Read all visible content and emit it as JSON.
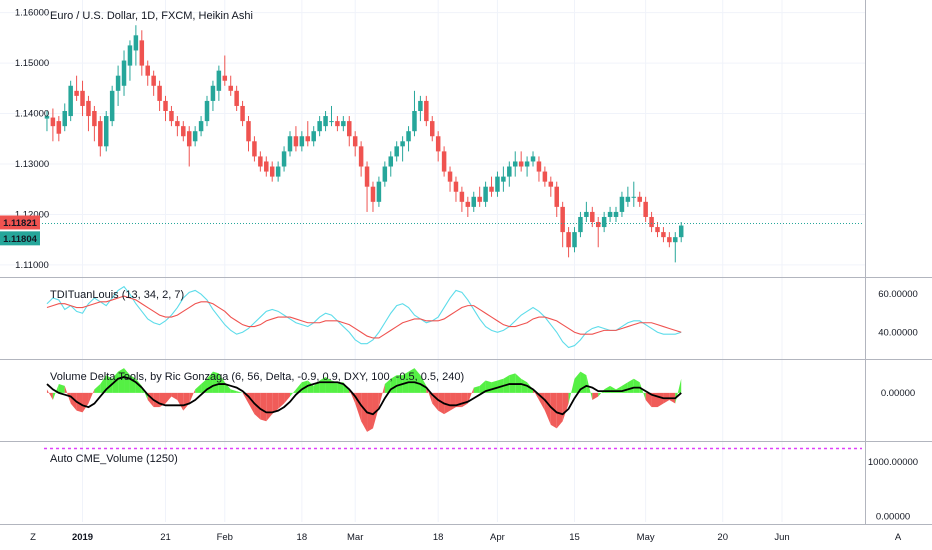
{
  "chart_data": {
    "type": "candlestick",
    "main": {
      "title": "Euro / U.S. Dollar, 1D, FXCM, Heikin Ashi",
      "y_ticks": [
        "1.16000",
        "1.15000",
        "1.14000",
        "1.13000",
        "1.12000",
        "1.11000"
      ],
      "y_tick_values": [
        1.16,
        1.15,
        1.14,
        1.13,
        1.12,
        1.11
      ],
      "ylim": [
        1.108,
        1.1625
      ],
      "price_labels": [
        {
          "text": "1.11821",
          "value": 1.11821,
          "color": "#ef5350"
        },
        {
          "text": "1.11804",
          "value": 1.11804,
          "color": "#26a69a"
        }
      ],
      "candles": [
        [
          1.139,
          1.1405,
          1.1365,
          1.1395
        ],
        [
          1.1392,
          1.141,
          1.1345,
          1.1375
        ],
        [
          1.1385,
          1.1395,
          1.1345,
          1.136
        ],
        [
          1.1375,
          1.142,
          1.1365,
          1.1405
        ],
        [
          1.1395,
          1.1465,
          1.1385,
          1.1455
        ],
        [
          1.1445,
          1.1475,
          1.1425,
          1.1435
        ],
        [
          1.1445,
          1.1465,
          1.1395,
          1.1415
        ],
        [
          1.1425,
          1.1435,
          1.1365,
          1.1395
        ],
        [
          1.1405,
          1.1415,
          1.1345,
          1.1375
        ],
        [
          1.1385,
          1.1395,
          1.1315,
          1.1335
        ],
        [
          1.1335,
          1.1405,
          1.1325,
          1.1395
        ],
        [
          1.1385,
          1.1455,
          1.1375,
          1.1445
        ],
        [
          1.1445,
          1.1495,
          1.1415,
          1.1475
        ],
        [
          1.1455,
          1.1525,
          1.1435,
          1.1505
        ],
        [
          1.1495,
          1.1545,
          1.1465,
          1.1535
        ],
        [
          1.1525,
          1.1575,
          1.1495,
          1.1555
        ],
        [
          1.1545,
          1.1565,
          1.1475,
          1.1495
        ],
        [
          1.1495,
          1.1505,
          1.1455,
          1.1475
        ],
        [
          1.1475,
          1.1485,
          1.1435,
          1.1455
        ],
        [
          1.1455,
          1.1465,
          1.1405,
          1.1425
        ],
        [
          1.1425,
          1.1435,
          1.1385,
          1.1405
        ],
        [
          1.1405,
          1.1415,
          1.1375,
          1.1385
        ],
        [
          1.1385,
          1.1395,
          1.1355,
          1.1375
        ],
        [
          1.1375,
          1.1385,
          1.1345,
          1.1355
        ],
        [
          1.1365,
          1.1375,
          1.1295,
          1.1335
        ],
        [
          1.1345,
          1.1375,
          1.1335,
          1.1365
        ],
        [
          1.1365,
          1.1395,
          1.1355,
          1.1385
        ],
        [
          1.1385,
          1.1435,
          1.1375,
          1.1425
        ],
        [
          1.1425,
          1.1465,
          1.1405,
          1.1455
        ],
        [
          1.1445,
          1.1495,
          1.1425,
          1.1485
        ],
        [
          1.1475,
          1.1515,
          1.1455,
          1.1465
        ],
        [
          1.1455,
          1.1475,
          1.1435,
          1.1445
        ],
        [
          1.1445,
          1.1455,
          1.1405,
          1.1415
        ],
        [
          1.1415,
          1.1425,
          1.1375,
          1.1385
        ],
        [
          1.1385,
          1.1395,
          1.1325,
          1.1345
        ],
        [
          1.1345,
          1.1355,
          1.1305,
          1.1315
        ],
        [
          1.1315,
          1.1325,
          1.1285,
          1.1295
        ],
        [
          1.1305,
          1.1315,
          1.1275,
          1.1285
        ],
        [
          1.1295,
          1.1305,
          1.1265,
          1.1275
        ],
        [
          1.1275,
          1.1305,
          1.1265,
          1.1295
        ],
        [
          1.1295,
          1.1335,
          1.1285,
          1.1325
        ],
        [
          1.1325,
          1.1365,
          1.1315,
          1.1355
        ],
        [
          1.1355,
          1.1375,
          1.1325,
          1.1335
        ],
        [
          1.1335,
          1.1365,
          1.1325,
          1.1355
        ],
        [
          1.1355,
          1.1385,
          1.1335,
          1.1345
        ],
        [
          1.1345,
          1.1375,
          1.1335,
          1.1365
        ],
        [
          1.1365,
          1.1395,
          1.1355,
          1.1385
        ],
        [
          1.1375,
          1.1405,
          1.1365,
          1.1395
        ],
        [
          1.1385,
          1.1415,
          1.1375,
          1.1385
        ],
        [
          1.1385,
          1.1395,
          1.1365,
          1.1375
        ],
        [
          1.1375,
          1.1395,
          1.1365,
          1.1385
        ],
        [
          1.1385,
          1.1395,
          1.1335,
          1.1355
        ],
        [
          1.1355,
          1.1365,
          1.1315,
          1.1335
        ],
        [
          1.1335,
          1.1345,
          1.1275,
          1.1295
        ],
        [
          1.1295,
          1.1305,
          1.1205,
          1.1255
        ],
        [
          1.1255,
          1.1265,
          1.1205,
          1.1225
        ],
        [
          1.1225,
          1.1275,
          1.1215,
          1.1265
        ],
        [
          1.1265,
          1.1305,
          1.1255,
          1.1295
        ],
        [
          1.1295,
          1.1325,
          1.1275,
          1.1315
        ],
        [
          1.1315,
          1.1345,
          1.1305,
          1.1335
        ],
        [
          1.1335,
          1.1355,
          1.1305,
          1.1345
        ],
        [
          1.1345,
          1.1375,
          1.1325,
          1.1365
        ],
        [
          1.1365,
          1.1445,
          1.1355,
          1.1405
        ],
        [
          1.1405,
          1.1435,
          1.1385,
          1.1425
        ],
        [
          1.1425,
          1.1435,
          1.1375,
          1.1385
        ],
        [
          1.1385,
          1.1395,
          1.1345,
          1.1355
        ],
        [
          1.1355,
          1.1365,
          1.1305,
          1.1325
        ],
        [
          1.1325,
          1.1335,
          1.1275,
          1.1285
        ],
        [
          1.1285,
          1.1295,
          1.1245,
          1.1265
        ],
        [
          1.1265,
          1.1275,
          1.1225,
          1.1245
        ],
        [
          1.1245,
          1.1255,
          1.1205,
          1.1225
        ],
        [
          1.1225,
          1.1235,
          1.1195,
          1.1215
        ],
        [
          1.1215,
          1.1245,
          1.1205,
          1.1235
        ],
        [
          1.1235,
          1.1255,
          1.1215,
          1.1225
        ],
        [
          1.1225,
          1.1265,
          1.1215,
          1.1255
        ],
        [
          1.1255,
          1.1275,
          1.1235,
          1.1245
        ],
        [
          1.1245,
          1.1285,
          1.1235,
          1.1275
        ],
        [
          1.1265,
          1.1295,
          1.1245,
          1.1275
        ],
        [
          1.1275,
          1.1305,
          1.1255,
          1.1295
        ],
        [
          1.1295,
          1.1325,
          1.1275,
          1.1305
        ],
        [
          1.1305,
          1.1325,
          1.1285,
          1.1295
        ],
        [
          1.1295,
          1.1315,
          1.1275,
          1.1305
        ],
        [
          1.1305,
          1.1325,
          1.1295,
          1.1315
        ],
        [
          1.1305,
          1.1315,
          1.1265,
          1.1285
        ],
        [
          1.1285,
          1.1295,
          1.1255,
          1.1265
        ],
        [
          1.1265,
          1.1275,
          1.1235,
          1.1255
        ],
        [
          1.1255,
          1.1265,
          1.1195,
          1.1215
        ],
        [
          1.1215,
          1.1225,
          1.1135,
          1.1165
        ],
        [
          1.1165,
          1.1175,
          1.1115,
          1.1135
        ],
        [
          1.1135,
          1.1175,
          1.1125,
          1.1165
        ],
        [
          1.1165,
          1.1205,
          1.1155,
          1.1195
        ],
        [
          1.1195,
          1.1225,
          1.1185,
          1.1205
        ],
        [
          1.1205,
          1.1215,
          1.1175,
          1.1185
        ],
        [
          1.1185,
          1.1195,
          1.1135,
          1.1175
        ],
        [
          1.1175,
          1.1205,
          1.1165,
          1.1195
        ],
        [
          1.1195,
          1.1215,
          1.1185,
          1.1205
        ],
        [
          1.1195,
          1.1215,
          1.1185,
          1.1205
        ],
        [
          1.1205,
          1.1245,
          1.1195,
          1.1235
        ],
        [
          1.1225,
          1.1255,
          1.1215,
          1.1235
        ],
        [
          1.1235,
          1.1265,
          1.1215,
          1.1235
        ],
        [
          1.1235,
          1.1245,
          1.1215,
          1.1225
        ],
        [
          1.1225,
          1.1235,
          1.1185,
          1.1195
        ],
        [
          1.1195,
          1.1205,
          1.1165,
          1.1175
        ],
        [
          1.1175,
          1.1185,
          1.1155,
          1.1165
        ],
        [
          1.1165,
          1.1175,
          1.1145,
          1.1155
        ],
        [
          1.1155,
          1.1165,
          1.1135,
          1.1145
        ],
        [
          1.1145,
          1.1165,
          1.1105,
          1.1155
        ],
        [
          1.1155,
          1.1185,
          1.1145,
          1.1178
        ]
      ]
    },
    "tdi": {
      "title": "TDITuanLouis (13, 34, 2, 7)",
      "y_ticks": [
        "60.00000",
        "40.00000"
      ],
      "y_tick_values": [
        60,
        40
      ],
      "ylim": [
        27,
        68
      ],
      "series": [
        {
          "color": "#5ddcea",
          "values": [
            55,
            58,
            57,
            52,
            54,
            51,
            50,
            55,
            58,
            56,
            54,
            58,
            62,
            64,
            60,
            55,
            51,
            47,
            45,
            44,
            46,
            49,
            53,
            58,
            61,
            62,
            60,
            57,
            52,
            48,
            44,
            41,
            39,
            40,
            42,
            45,
            48,
            51,
            52,
            51,
            49,
            47,
            45,
            44,
            43,
            45,
            48,
            50,
            49,
            46,
            43,
            40,
            36,
            34,
            34,
            36,
            40,
            45,
            50,
            54,
            55,
            53,
            49,
            47,
            45,
            46,
            48,
            53,
            58,
            62,
            61,
            57,
            52,
            47,
            43,
            41,
            40,
            41,
            43,
            46,
            49,
            51,
            53,
            51,
            48,
            44,
            40,
            35,
            32,
            33,
            36,
            40,
            42,
            43,
            42,
            41,
            41,
            43,
            45,
            46,
            46,
            44,
            42,
            40,
            39,
            39,
            39,
            40
          ]
        },
        {
          "color": "#ef5350",
          "values": [
            53,
            54,
            55,
            55,
            54,
            53,
            53,
            54,
            55,
            56,
            56,
            57,
            58,
            59,
            58,
            57,
            55,
            53,
            51,
            49,
            48,
            48,
            49,
            51,
            53,
            55,
            56,
            56,
            55,
            53,
            51,
            48,
            46,
            44,
            43,
            43,
            44,
            46,
            47,
            48,
            48,
            48,
            47,
            46,
            45,
            45,
            45,
            46,
            46,
            46,
            45,
            44,
            42,
            40,
            38,
            37,
            37,
            39,
            41,
            43,
            45,
            46,
            47,
            47,
            46,
            46,
            46,
            47,
            49,
            51,
            53,
            54,
            54,
            52,
            50,
            48,
            46,
            44,
            43,
            43,
            44,
            45,
            47,
            48,
            48,
            47,
            46,
            44,
            42,
            40,
            39,
            39,
            39,
            40,
            41,
            41,
            41,
            42,
            43,
            44,
            45,
            45,
            45,
            44,
            43,
            42,
            41,
            40
          ]
        }
      ]
    },
    "vdt": {
      "title": "Volume Delta Tools, by Ric Gonzaga (6, 56, Delta, -0.9, 0.9, DXY, 100, -0.5, 0.5, 240)",
      "y_ticks": [
        "0.00000"
      ],
      "y_tick_values": [
        0
      ],
      "ylim": [
        -1.3,
        0.9
      ],
      "delta": [
        0.1,
        -0.2,
        0.25,
        0.2,
        -0.3,
        -0.5,
        -0.55,
        -0.3,
        0.1,
        0.25,
        0.5,
        0.4,
        0.6,
        0.7,
        0.5,
        0.4,
        0.2,
        -0.2,
        -0.4,
        -0.4,
        -0.3,
        -0.1,
        -0.2,
        -0.5,
        -0.3,
        0.1,
        0.25,
        0.4,
        0.6,
        0.55,
        0.3,
        0.1,
        0.05,
        0.0,
        -0.3,
        -0.6,
        -0.75,
        -0.8,
        -0.6,
        -0.45,
        -0.3,
        -0.1,
        0.1,
        0.3,
        0.35,
        0.2,
        0.35,
        0.45,
        0.35,
        0.3,
        0.3,
        0.1,
        -0.3,
        -0.8,
        -1.1,
        -1.0,
        -0.4,
        0.25,
        0.4,
        0.5,
        0.5,
        0.6,
        0.7,
        0.5,
        0.2,
        -0.3,
        -0.5,
        -0.6,
        -0.5,
        -0.4,
        -0.4,
        -0.3,
        0.15,
        0.2,
        0.35,
        0.3,
        0.35,
        0.4,
        0.5,
        0.55,
        0.4,
        0.3,
        0.1,
        -0.2,
        -0.5,
        -0.9,
        -1.0,
        -0.8,
        -0.3,
        0.4,
        0.6,
        0.5,
        -0.2,
        -0.1,
        0.1,
        0.2,
        0.1,
        0.2,
        0.3,
        0.4,
        0.3,
        -0.2,
        -0.4,
        -0.4,
        -0.3,
        -0.2,
        -0.3,
        0.4
      ],
      "smooth": [
        0.25,
        0.1,
        0.0,
        -0.05,
        -0.1,
        -0.25,
        -0.35,
        -0.4,
        -0.3,
        -0.1,
        0.1,
        0.25,
        0.4,
        0.45,
        0.4,
        0.3,
        0.15,
        -0.05,
        -0.2,
        -0.3,
        -0.35,
        -0.35,
        -0.35,
        -0.35,
        -0.3,
        -0.2,
        -0.05,
        0.1,
        0.2,
        0.25,
        0.25,
        0.2,
        0.15,
        0.05,
        -0.1,
        -0.3,
        -0.45,
        -0.55,
        -0.55,
        -0.5,
        -0.4,
        -0.25,
        -0.05,
        0.1,
        0.2,
        0.25,
        0.3,
        0.3,
        0.3,
        0.3,
        0.25,
        0.1,
        -0.1,
        -0.35,
        -0.55,
        -0.6,
        -0.45,
        -0.15,
        0.1,
        0.2,
        0.25,
        0.3,
        0.3,
        0.25,
        0.15,
        -0.05,
        -0.2,
        -0.3,
        -0.35,
        -0.35,
        -0.3,
        -0.25,
        -0.15,
        -0.05,
        0.05,
        0.1,
        0.15,
        0.2,
        0.25,
        0.25,
        0.25,
        0.2,
        0.1,
        -0.05,
        -0.2,
        -0.4,
        -0.55,
        -0.6,
        -0.45,
        -0.15,
        0.1,
        0.2,
        0.15,
        0.05,
        0.05,
        0.05,
        0.05,
        0.05,
        0.1,
        0.15,
        0.15,
        0.05,
        -0.05,
        -0.1,
        -0.15,
        -0.15,
        -0.15,
        0.0
      ]
    },
    "cme": {
      "title": "Auto CME_Volume (1250)",
      "y_ticks": [
        "1000.00000",
        "0.00000"
      ],
      "y_tick_values": [
        1000,
        0
      ],
      "ylim": [
        -100,
        1350
      ],
      "level": 1250
    },
    "x_labels": [
      "2019",
      "21",
      "Feb",
      "18",
      "Mar",
      "18",
      "Apr",
      "15",
      "May",
      "20",
      "Jun"
    ],
    "x_label_bars": [
      6,
      20,
      30,
      43,
      52,
      66,
      76,
      89,
      101,
      114,
      124
    ],
    "total_bars": 138
  },
  "ui": {
    "z_button": "Z",
    "a_button": "A"
  },
  "colors": {
    "up": "#26a69a",
    "down": "#ef5350",
    "grid": "#f0f3fa",
    "border": "#b2b5be"
  }
}
